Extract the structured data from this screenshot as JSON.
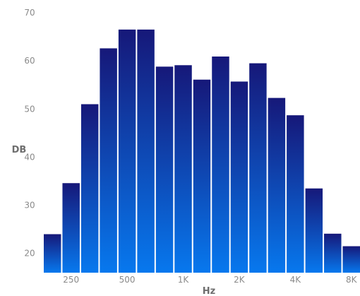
{
  "chart_data": {
    "type": "bar",
    "xlabel": "Hz",
    "ylabel": "DB",
    "ylim": [
      16,
      70
    ],
    "yticks": [
      20,
      30,
      40,
      50,
      60,
      70
    ],
    "x_tick_labels": [
      "250",
      "500",
      "1K",
      "2K",
      "4K",
      "8K"
    ],
    "x_tick_bar_positions": [
      1.5,
      4.5,
      7.5,
      10.5,
      13.5,
      16.5
    ],
    "values": [
      24,
      34.6,
      51,
      62.6,
      66.5,
      66.5,
      58.8,
      59.1,
      56.1,
      60.9,
      55.7,
      59.5,
      52.3,
      48.7,
      33.5,
      24.1,
      21.5
    ],
    "grid": false,
    "legend": "none",
    "colors": {
      "bar_top": "#161879",
      "bar_bottom": "#0778ee",
      "tick_text": "#8a8a8a",
      "axis_title": "#6e6e6e"
    }
  }
}
